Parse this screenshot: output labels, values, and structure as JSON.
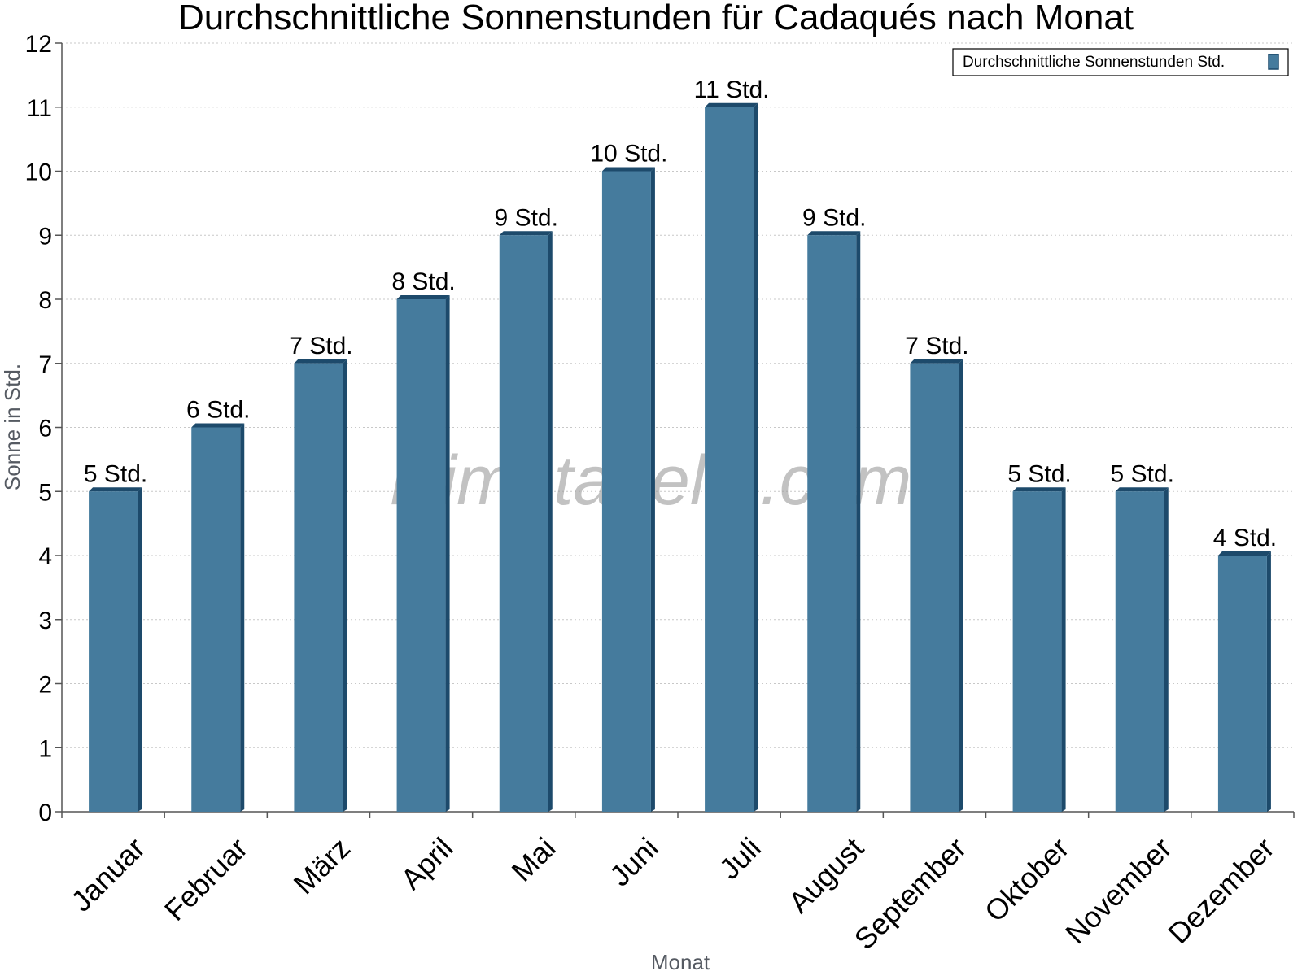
{
  "chart_data": {
    "type": "bar",
    "title": "Durchschnittliche Sonnenstunden für Cadaqués nach Monat",
    "xlabel": "Monat",
    "ylabel": "Sonne in Std.",
    "categories": [
      "Januar",
      "Februar",
      "März",
      "April",
      "Mai",
      "Juni",
      "Juli",
      "August",
      "September",
      "Oktober",
      "November",
      "Dezember"
    ],
    "series": [
      {
        "name": "Durchschnittliche Sonnenstunden Std.",
        "values": [
          5,
          6,
          7,
          8,
          9,
          10,
          11,
          9,
          7,
          5,
          5,
          4
        ],
        "data_labels": [
          "5 Std.",
          "6 Std.",
          "7 Std.",
          "8 Std.",
          "9 Std.",
          "10 Std.",
          "11 Std.",
          "9 Std.",
          "7 Std.",
          "5 Std.",
          "5 Std.",
          "4 Std."
        ]
      }
    ],
    "ylim": [
      0,
      12
    ],
    "yticks": [
      "0",
      "1",
      "2",
      "3",
      "4",
      "5",
      "6",
      "7",
      "8",
      "9",
      "10",
      "11",
      "12"
    ],
    "grid": true,
    "legend_position": "top-right",
    "watermark": "klimatabelle.com",
    "colors": {
      "bar_face": "#457b9d",
      "bar_side": "#1d4a6b",
      "bar_top": "#1d4a6b"
    }
  }
}
